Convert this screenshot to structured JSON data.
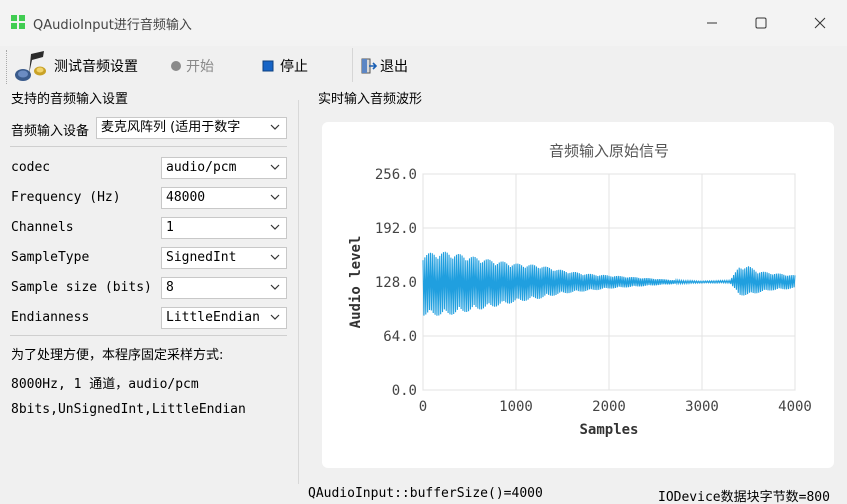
{
  "window": {
    "title": "QAudioInput进行音频输入",
    "icons": [
      "app-icon",
      "minimize-icon",
      "maximize-icon",
      "close-icon"
    ]
  },
  "toolbar": {
    "test_label": "测试音频设置",
    "start_label": "开始",
    "stop_label": "停止",
    "exit_label": "退出"
  },
  "settings": {
    "group_title": "支持的音频输入设置",
    "device_label": "音频输入设备",
    "device_value": "麦克风阵列 (适用于数字",
    "rows": [
      {
        "label": "codec",
        "value": "audio/pcm"
      },
      {
        "label": "Frequency (Hz)",
        "value": "48000"
      },
      {
        "label": "Channels",
        "value": "1"
      },
      {
        "label": "SampleType",
        "value": "SignedInt"
      },
      {
        "label": "Sample size (bits)",
        "value": "8"
      },
      {
        "label": "Endianness",
        "value": "LittleEndian"
      }
    ],
    "notes": [
      "为了处理方便，本程序固定采样方式:",
      "8000Hz, 1 通道，audio/pcm",
      "8bits,UnSignedInt,LittleEndian"
    ]
  },
  "wave_panel": {
    "group_title": "实时输入音频波形"
  },
  "status": {
    "buffer": "QAudioInput::bufferSize()=4000",
    "block": "IODevice数据块字节数=800"
  },
  "chart_data": {
    "type": "line",
    "title": "音频输入原始信号",
    "xlabel": "Samples",
    "ylabel": "Audio level",
    "xlim": [
      0,
      4000
    ],
    "ylim": [
      0,
      256
    ],
    "xticks": [
      0,
      1000,
      2000,
      3000,
      4000
    ],
    "yticks": [
      "0.0",
      "64.0",
      "128.0",
      "192.0",
      "256.0"
    ],
    "grid": true,
    "line_color": "#209fdf",
    "series": [
      {
        "envelope": [
          {
            "x": 0,
            "min": 88,
            "max": 162
          },
          {
            "x": 250,
            "min": 88,
            "max": 164
          },
          {
            "x": 500,
            "min": 93,
            "max": 159
          },
          {
            "x": 750,
            "min": 98,
            "max": 154
          },
          {
            "x": 1000,
            "min": 104,
            "max": 150
          },
          {
            "x": 1250,
            "min": 108,
            "max": 148
          },
          {
            "x": 1500,
            "min": 114,
            "max": 142
          },
          {
            "x": 1750,
            "min": 117,
            "max": 138
          },
          {
            "x": 2000,
            "min": 120,
            "max": 136
          },
          {
            "x": 2250,
            "min": 122,
            "max": 134
          },
          {
            "x": 2500,
            "min": 124,
            "max": 132
          },
          {
            "x": 2750,
            "min": 126,
            "max": 130
          },
          {
            "x": 3000,
            "min": 127,
            "max": 129
          },
          {
            "x": 3300,
            "min": 127,
            "max": 130
          },
          {
            "x": 3400,
            "min": 112,
            "max": 146
          },
          {
            "x": 3500,
            "min": 112,
            "max": 147
          },
          {
            "x": 3600,
            "min": 115,
            "max": 141
          },
          {
            "x": 3750,
            "min": 118,
            "max": 139
          },
          {
            "x": 4000,
            "min": 120,
            "max": 136
          }
        ]
      }
    ]
  }
}
